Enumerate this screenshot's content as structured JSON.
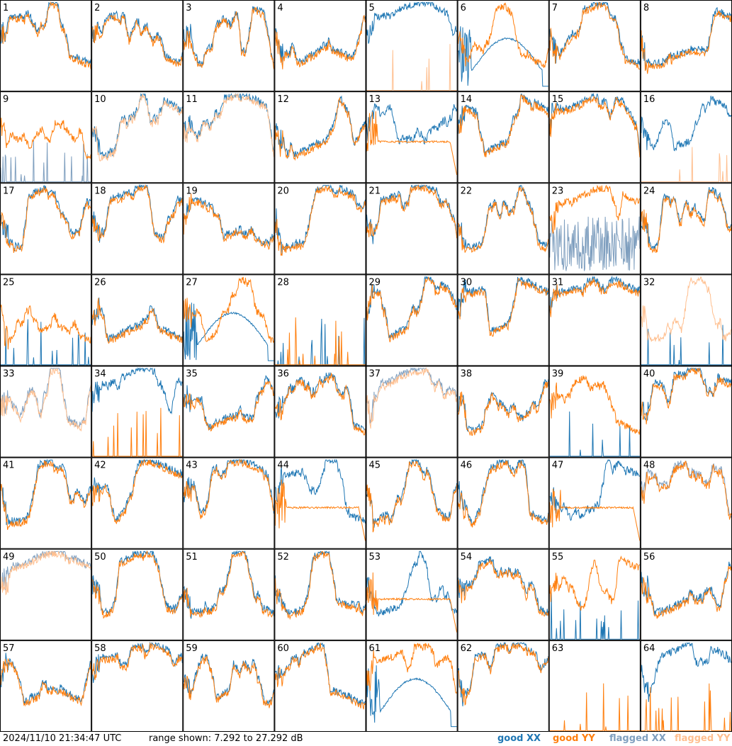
{
  "chart_data": {
    "type": "line",
    "panel_count": 64,
    "grid": "8x8",
    "panel_labels": [
      "1",
      "2",
      "3",
      "4",
      "5",
      "6",
      "7",
      "8",
      "9",
      "10",
      "11",
      "12",
      "13",
      "14",
      "15",
      "16",
      "17",
      "18",
      "19",
      "20",
      "21",
      "22",
      "23",
      "24",
      "25",
      "26",
      "27",
      "28",
      "29",
      "30",
      "31",
      "32",
      "33",
      "34",
      "35",
      "36",
      "37",
      "38",
      "39",
      "40",
      "41",
      "42",
      "43",
      "44",
      "45",
      "46",
      "47",
      "48",
      "49",
      "50",
      "51",
      "52",
      "53",
      "54",
      "55",
      "56",
      "57",
      "58",
      "59",
      "60",
      "61",
      "62",
      "63",
      "64"
    ],
    "ylim": [
      7.292,
      27.292
    ],
    "series_names": [
      "good XX",
      "good YY",
      "flagged XX",
      "flagged YY"
    ],
    "colors": {
      "good_xx": "#1f77b4",
      "good_yy": "#ff7f0e",
      "flagged_xx": "#7f9fbf",
      "flagged_yy": "#ffbf8f"
    },
    "panel_styles": {
      "5": {
        "xx": "good",
        "yy": "flagged",
        "yy_mode": "spikes"
      },
      "6": {
        "xx": "good",
        "yy": "good",
        "xx_mode": "arc"
      },
      "9": {
        "xx": "flagged",
        "yy": "good",
        "xx_mode": "spikes"
      },
      "10": {
        "xx": "good",
        "yy": "flagged"
      },
      "11": {
        "xx": "good",
        "yy": "flagged"
      },
      "13": {
        "xx": "good",
        "yy": "good",
        "yy_mode": "droop"
      },
      "16": {
        "xx": "good",
        "yy": "flagged",
        "yy_mode": "spikes"
      },
      "23": {
        "xx": "flagged",
        "yy": "good",
        "xx_mode": "noise"
      },
      "25": {
        "xx": "good",
        "yy": "good",
        "xx_mode": "spikes"
      },
      "27": {
        "xx": "good",
        "yy": "good",
        "xx_mode": "arc"
      },
      "28": {
        "xx": "good",
        "yy": "good",
        "xx_mode": "spikes",
        "yy_mode": "spikes"
      },
      "32": {
        "xx": "good",
        "yy": "flagged",
        "xx_mode": "spikes"
      },
      "33": {
        "xx": "flagged",
        "yy": "flagged"
      },
      "34": {
        "xx": "good",
        "yy": "good",
        "yy_mode": "spikes"
      },
      "37": {
        "xx": "flagged",
        "yy": "flagged"
      },
      "39": {
        "xx": "good",
        "yy": "good",
        "xx_mode": "spikes"
      },
      "44": {
        "xx": "good",
        "yy": "good",
        "yy_mode": "droop"
      },
      "47": {
        "xx": "good",
        "yy": "good",
        "yy_mode": "droop"
      },
      "48": {
        "xx": "flagged",
        "yy": "good"
      },
      "49": {
        "xx": "flagged",
        "yy": "flagged"
      },
      "53": {
        "xx": "good",
        "yy": "good",
        "yy_mode": "droop"
      },
      "55": {
        "xx": "good",
        "yy": "good",
        "xx_mode": "spikes"
      },
      "61": {
        "xx": "good",
        "yy": "good",
        "xx_mode": "arc"
      },
      "63": {
        "xx": "good",
        "yy": "good",
        "yy_mode": "spikes",
        "xx_mode": "none"
      },
      "64": {
        "xx": "good",
        "yy": "good",
        "yy_mode": "spikes"
      }
    }
  },
  "footer": {
    "timestamp": "2024/11/10 21:34:47 UTC",
    "range_text": "range shown: 7.292 to 27.292 dB",
    "legend": {
      "good_xx": "good XX",
      "good_yy": "good YY",
      "flagged_xx": "flagged XX",
      "flagged_yy": "flagged YY"
    }
  }
}
